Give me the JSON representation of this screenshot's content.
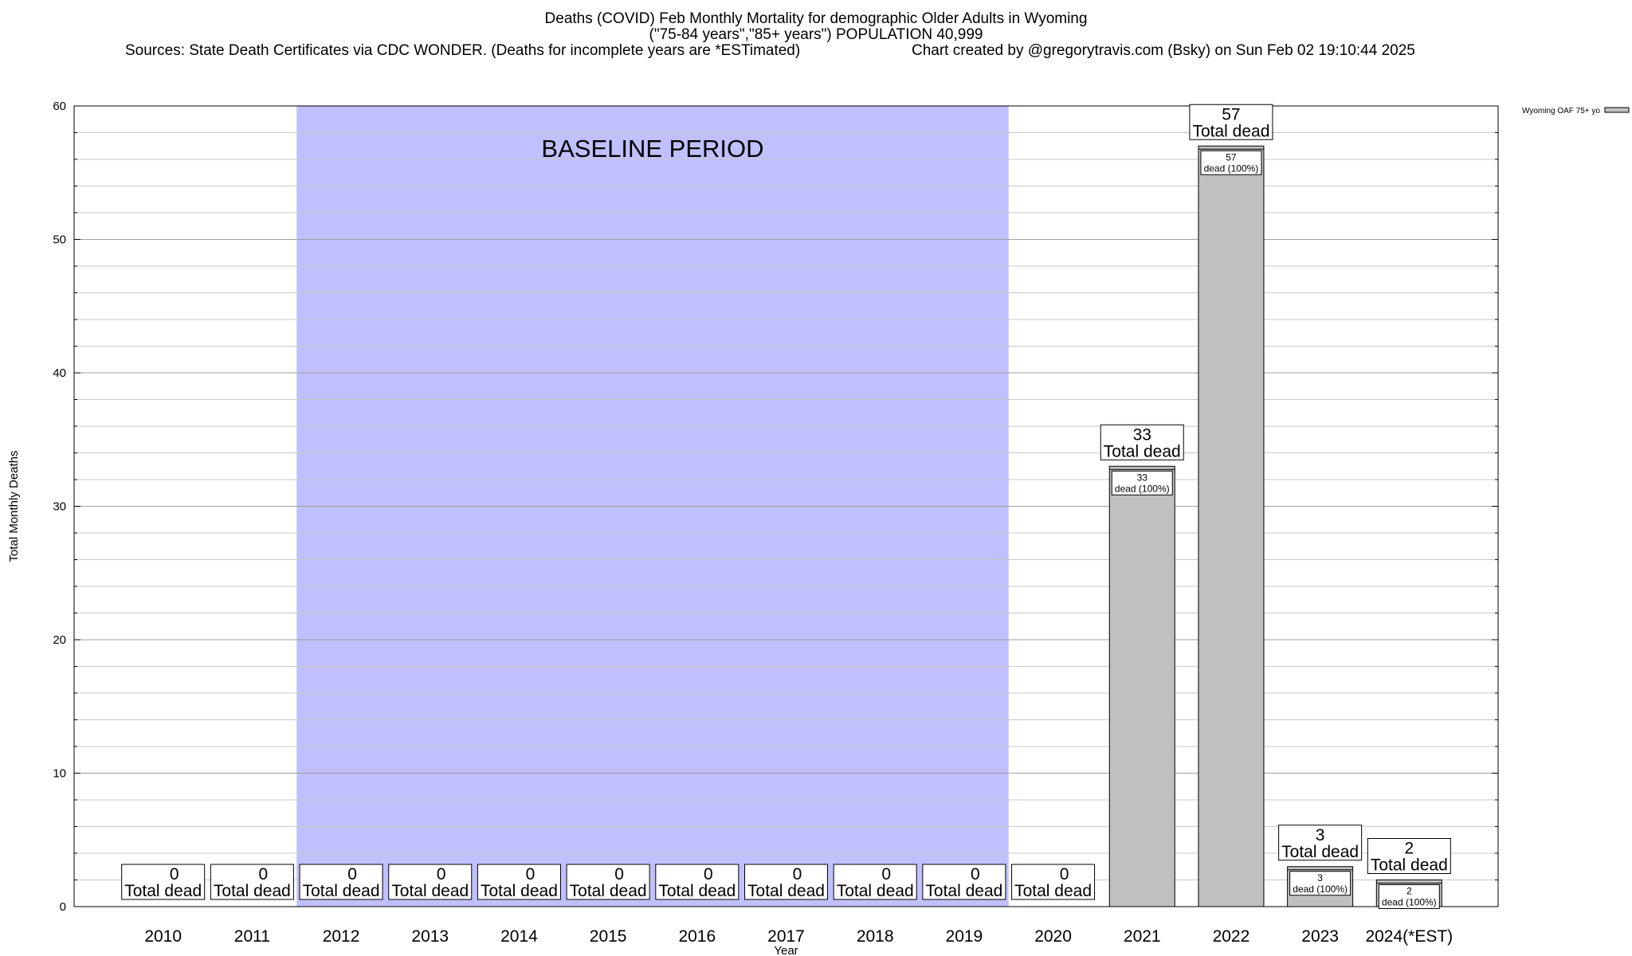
{
  "header": {
    "title": "Deaths (COVID) Feb Monthly Mortality for demographic Older Adults in Wyoming",
    "subtitle": "(\"75-84 years\",\"85+ years\") POPULATION 40,999",
    "sources": "Sources: State Death Certificates via CDC WONDER. (Deaths for incomplete years are *ESTimated)",
    "credit": "Chart created by @gregorytravis.com (Bsky) on Sun Feb 02 19:10:44 2025"
  },
  "chart_data": {
    "type": "bar",
    "categories": [
      "2010",
      "2011",
      "2012",
      "2013",
      "2014",
      "2015",
      "2016",
      "2017",
      "2018",
      "2019",
      "2020",
      "2021",
      "2022",
      "2023",
      "2024(*EST)"
    ],
    "series": [
      {
        "name": "Wyoming OAF 75+ yo",
        "values": [
          0,
          0,
          0,
          0,
          0,
          0,
          0,
          0,
          0,
          0,
          0,
          33,
          57,
          3,
          2
        ],
        "color": "#c0c0c0"
      }
    ],
    "xlabel": "Year",
    "ylabel": "Total Monthly Deaths",
    "ylim": [
      0,
      60
    ],
    "yticks": [
      0,
      10,
      20,
      30,
      40,
      50,
      60
    ],
    "grid": true,
    "legend_position": "top-right",
    "bar_label_text": "Total dead",
    "inner_label_text": "dead (100%)",
    "inner_label_pct": "100%",
    "baseline": {
      "label": "BASELINE PERIOD",
      "from": "2012",
      "to": "2019",
      "color": "#c0c0ff"
    }
  }
}
